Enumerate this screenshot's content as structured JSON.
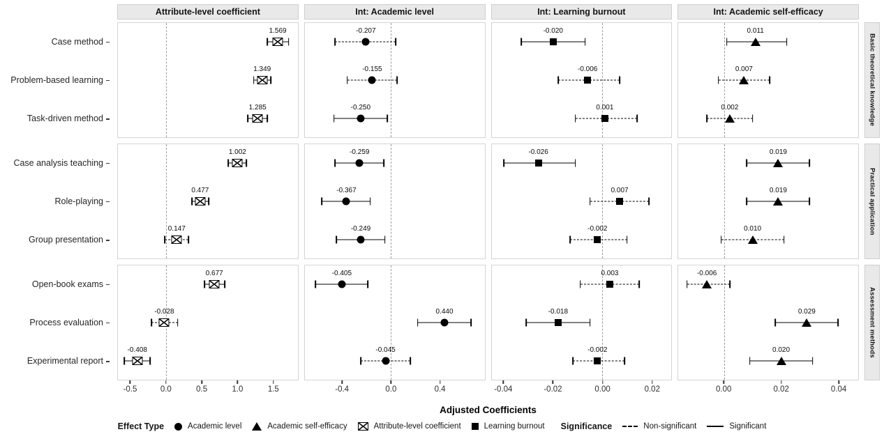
{
  "legend": {
    "effect_type_label": "Effect Type",
    "effect_types": [
      {
        "label": "Academic level",
        "marker": "circle"
      },
      {
        "label": "Academic self-efficacy",
        "marker": "triangle"
      },
      {
        "label": "Attribute-level coefficient",
        "marker": "crossed-square"
      },
      {
        "label": "Learning burnout",
        "marker": "square"
      }
    ],
    "significance_label": "Significance",
    "significance": [
      {
        "label": "Non-significant",
        "style": "dashed"
      },
      {
        "label": "Significant",
        "style": "solid"
      }
    ]
  },
  "colors": {
    "marker": "#000000",
    "strip_background": "#e9e9e9",
    "panel_border": "#d4d4d4",
    "zero_line": "#9b9b9b"
  },
  "chart_data": {
    "type": "scatter",
    "variant": "faceted forest plot: point estimates with 95% CI error bars, 4 facet columns x 3 facet row groups",
    "xlabel": "Adjusted Coefficients",
    "grid": "off",
    "zero_reference_line": "dashed vertical at 0 in every panel",
    "row_groups": [
      {
        "label": "Basic theoretical knowledge",
        "rows": [
          "Case method",
          "Problem-based learning",
          "Task-driven method"
        ]
      },
      {
        "label": "Practical application",
        "rows": [
          "Case analysis teaching",
          "Role-playing",
          "Group presentation"
        ]
      },
      {
        "label": "Assessment methods",
        "rows": [
          "Open-book exams",
          "Process evaluation",
          "Experimental report"
        ]
      }
    ],
    "facets": [
      {
        "title": "Attribute-level coefficient",
        "marker": "crossed-square",
        "xlim": [
          -0.68,
          1.85
        ],
        "ticks": [
          -0.5,
          0.0,
          0.5,
          1.0,
          1.5
        ],
        "tick_labels": [
          "-0.5",
          "0.0",
          "0.5",
          "1.0",
          "1.5"
        ],
        "points": [
          {
            "row": "Case method",
            "estimate": 1.569,
            "label": "1.569",
            "ci": [
              1.42,
              1.72
            ],
            "significant": true
          },
          {
            "row": "Problem-based learning",
            "estimate": 1.349,
            "label": "1.349",
            "ci": [
              1.23,
              1.47
            ],
            "significant": true
          },
          {
            "row": "Task-driven method",
            "estimate": 1.285,
            "label": "1.285",
            "ci": [
              1.15,
              1.42
            ],
            "significant": true
          },
          {
            "row": "Case analysis teaching",
            "estimate": 1.002,
            "label": "1.002",
            "ci": [
              0.87,
              1.13
            ],
            "significant": true
          },
          {
            "row": "Role-playing",
            "estimate": 0.477,
            "label": "0.477",
            "ci": [
              0.36,
              0.6
            ],
            "significant": true
          },
          {
            "row": "Group presentation",
            "estimate": 0.147,
            "label": "0.147",
            "ci": [
              -0.02,
              0.31
            ],
            "significant": false
          },
          {
            "row": "Open-book exams",
            "estimate": 0.677,
            "label": "0.677",
            "ci": [
              0.54,
              0.82
            ],
            "significant": true
          },
          {
            "row": "Process evaluation",
            "estimate": -0.028,
            "label": "-0.028",
            "ci": [
              -0.21,
              0.16
            ],
            "significant": false
          },
          {
            "row": "Experimental report",
            "estimate": -0.408,
            "label": "-0.408",
            "ci": [
              -0.59,
              -0.23
            ],
            "significant": true
          }
        ]
      },
      {
        "title": "Int: Academic level",
        "marker": "circle",
        "xlim": [
          -0.71,
          0.77
        ],
        "ticks": [
          -0.4,
          0.0,
          0.4
        ],
        "tick_labels": [
          "-0.4",
          "0.0",
          "0.4"
        ],
        "points": [
          {
            "row": "Case method",
            "estimate": -0.207,
            "label": "-0.207",
            "ci": [
              -0.46,
              0.04
            ],
            "significant": false
          },
          {
            "row": "Problem-based learning",
            "estimate": -0.155,
            "label": "-0.155",
            "ci": [
              -0.36,
              0.05
            ],
            "significant": false
          },
          {
            "row": "Task-driven method",
            "estimate": -0.25,
            "label": "-0.250",
            "ci": [
              -0.47,
              -0.03
            ],
            "significant": true
          },
          {
            "row": "Case analysis teaching",
            "estimate": -0.259,
            "label": "-0.259",
            "ci": [
              -0.46,
              -0.06
            ],
            "significant": true
          },
          {
            "row": "Role-playing",
            "estimate": -0.367,
            "label": "-0.367",
            "ci": [
              -0.57,
              -0.17
            ],
            "significant": true
          },
          {
            "row": "Group presentation",
            "estimate": -0.249,
            "label": "-0.249",
            "ci": [
              -0.45,
              -0.05
            ],
            "significant": true
          },
          {
            "row": "Open-book exams",
            "estimate": -0.405,
            "label": "-0.405",
            "ci": [
              -0.62,
              -0.19
            ],
            "significant": true
          },
          {
            "row": "Process evaluation",
            "estimate": 0.44,
            "label": "0.440",
            "ci": [
              0.22,
              0.66
            ],
            "significant": true
          },
          {
            "row": "Experimental report",
            "estimate": -0.045,
            "label": "-0.045",
            "ci": [
              -0.25,
              0.16
            ],
            "significant": false
          }
        ]
      },
      {
        "title": "Int: Learning burnout",
        "marker": "square",
        "xlim": [
          -0.045,
          0.028
        ],
        "ticks": [
          -0.04,
          -0.02,
          0.0,
          0.02
        ],
        "tick_labels": [
          "-0.04",
          "-0.02",
          "0.00",
          "0.02"
        ],
        "points": [
          {
            "row": "Case method",
            "estimate": -0.02,
            "label": "-0.020",
            "ci": [
              -0.033,
              -0.007
            ],
            "significant": true
          },
          {
            "row": "Problem-based learning",
            "estimate": -0.006,
            "label": "-0.006",
            "ci": [
              -0.018,
              0.007
            ],
            "significant": false
          },
          {
            "row": "Task-driven method",
            "estimate": 0.001,
            "label": "0.001",
            "ci": [
              -0.011,
              0.014
            ],
            "significant": false
          },
          {
            "row": "Case analysis teaching",
            "estimate": -0.026,
            "label": "-0.026",
            "ci": [
              -0.04,
              -0.011
            ],
            "significant": true
          },
          {
            "row": "Role-playing",
            "estimate": 0.007,
            "label": "0.007",
            "ci": [
              -0.005,
              0.019
            ],
            "significant": false
          },
          {
            "row": "Group presentation",
            "estimate": -0.002,
            "label": "-0.002",
            "ci": [
              -0.013,
              0.01
            ],
            "significant": false
          },
          {
            "row": "Open-book exams",
            "estimate": 0.003,
            "label": "0.003",
            "ci": [
              -0.009,
              0.015
            ],
            "significant": false
          },
          {
            "row": "Process evaluation",
            "estimate": -0.018,
            "label": "-0.018",
            "ci": [
              -0.031,
              -0.005
            ],
            "significant": true
          },
          {
            "row": "Experimental report",
            "estimate": -0.002,
            "label": "-0.002",
            "ci": [
              -0.012,
              0.009
            ],
            "significant": false
          }
        ]
      },
      {
        "title": "Int: Academic self-efficacy",
        "marker": "triangle",
        "xlim": [
          -0.016,
          0.047
        ],
        "ticks": [
          0.0,
          0.02,
          0.04
        ],
        "tick_labels": [
          "0.00",
          "0.02",
          "0.04"
        ],
        "points": [
          {
            "row": "Case method",
            "estimate": 0.011,
            "label": "0.011",
            "ci": [
              0.001,
              0.022
            ],
            "significant": true
          },
          {
            "row": "Problem-based learning",
            "estimate": 0.007,
            "label": "0.007",
            "ci": [
              -0.002,
              0.016
            ],
            "significant": false
          },
          {
            "row": "Task-driven method",
            "estimate": 0.002,
            "label": "0.002",
            "ci": [
              -0.006,
              0.01
            ],
            "significant": false
          },
          {
            "row": "Case analysis teaching",
            "estimate": 0.019,
            "label": "0.019",
            "ci": [
              0.008,
              0.03
            ],
            "significant": true
          },
          {
            "row": "Role-playing",
            "estimate": 0.019,
            "label": "0.019",
            "ci": [
              0.008,
              0.03
            ],
            "significant": true
          },
          {
            "row": "Group presentation",
            "estimate": 0.01,
            "label": "0.010",
            "ci": [
              -0.001,
              0.021
            ],
            "significant": false
          },
          {
            "row": "Open-book exams",
            "estimate": -0.006,
            "label": "-0.006",
            "ci": [
              -0.013,
              0.002
            ],
            "significant": false
          },
          {
            "row": "Process evaluation",
            "estimate": 0.029,
            "label": "0.029",
            "ci": [
              0.018,
              0.04
            ],
            "significant": true
          },
          {
            "row": "Experimental report",
            "estimate": 0.02,
            "label": "0.020",
            "ci": [
              0.009,
              0.031
            ],
            "significant": true
          }
        ]
      }
    ]
  }
}
